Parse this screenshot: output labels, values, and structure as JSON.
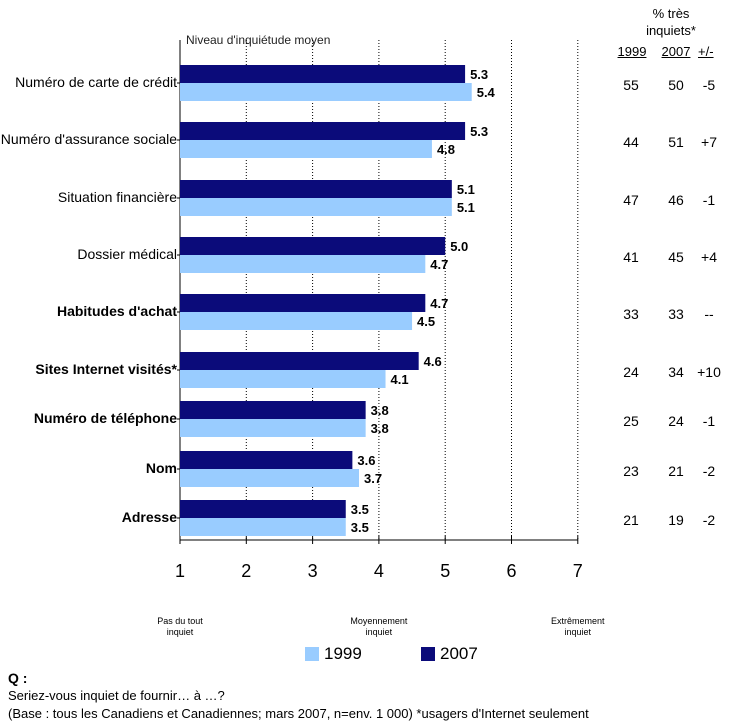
{
  "chart_data": {
    "type": "bar",
    "orientation": "horizontal",
    "axis_title": "Niveau d'inquiétude moyen",
    "categories": [
      "Numéro de carte de crédit",
      "Numéro d'assurance sociale",
      "Situation financière",
      "Dossier médical",
      "Habitudes d'achat",
      "Sites Internet visités*",
      "Numéro de téléphone",
      "Nom",
      "Adresse"
    ],
    "bold_categories": [
      false,
      false,
      false,
      false,
      true,
      true,
      true,
      true,
      true
    ],
    "series": [
      {
        "name": "2007",
        "color": "#0b0b7a",
        "values": [
          5.3,
          5.3,
          5.1,
          5.0,
          4.7,
          4.6,
          3.8,
          3.6,
          3.5
        ]
      },
      {
        "name": "1999",
        "color": "#99ccff",
        "values": [
          5.4,
          4.8,
          5.1,
          4.7,
          4.5,
          4.1,
          3.8,
          3.7,
          3.5
        ]
      }
    ],
    "xlim": [
      1,
      7
    ],
    "xticks": [
      "1",
      "2",
      "3",
      "4",
      "5",
      "6",
      "7"
    ],
    "value_labels_2007": [
      "5.3",
      "5.3",
      "5.1",
      "5.0",
      "4.7",
      "4.6",
      "3.8",
      "3.6",
      "3.5"
    ],
    "value_labels_1999": [
      "5.4",
      "4.8",
      "5.1",
      "4.7",
      "4.5",
      "4.1",
      "3.8",
      "3.7",
      "3.5"
    ],
    "scale_labels": [
      {
        "at": 1,
        "text": "Pas du tout\ninquiet"
      },
      {
        "at": 4,
        "text": "Moyennement\ninquiet"
      },
      {
        "at": 7,
        "text": "Extrêmement\ninquiet"
      }
    ],
    "legend": [
      {
        "label": "1999",
        "color": "#99ccff"
      },
      {
        "label": "2007",
        "color": "#0b0b7a"
      }
    ],
    "table": {
      "title_line1": "% très",
      "title_line2": "inquiets*",
      "columns": [
        "1999",
        "2007",
        "+/-"
      ],
      "rows": [
        [
          "55",
          "50",
          "-5"
        ],
        [
          "44",
          "51",
          "+7"
        ],
        [
          "47",
          "46",
          "-1"
        ],
        [
          "41",
          "45",
          "+4"
        ],
        [
          "33",
          "33",
          "--"
        ],
        [
          "24",
          "34",
          "+10"
        ],
        [
          "25",
          "24",
          "-1"
        ],
        [
          "23",
          "21",
          "-2"
        ],
        [
          "21",
          "19",
          "-2"
        ]
      ]
    }
  },
  "footer": {
    "q_label": "Q :",
    "question": "Seriez-vous inquiet de fournir… à …?",
    "base": "(Base : tous les Canadiens et Canadiennes; mars 2007, n=env. 1 000) *usagers d'Internet seulement"
  }
}
